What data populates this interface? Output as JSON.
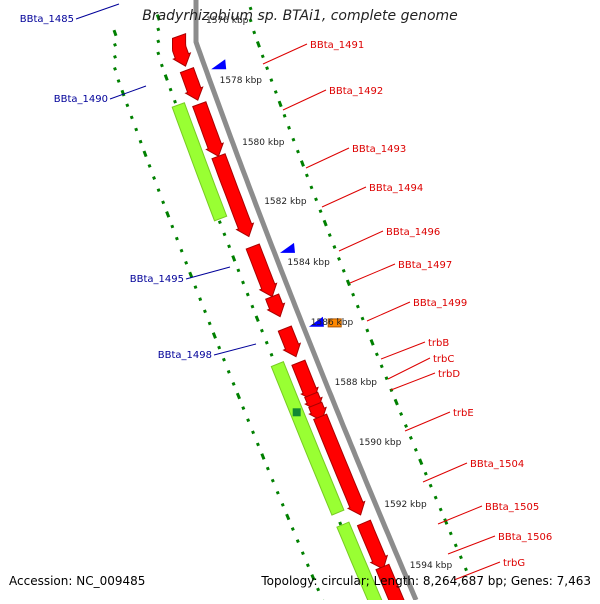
{
  "title": "Bradyrhizobium sp. BTAi1, complete genome",
  "footer": {
    "accession": "Accession: NC_009485",
    "summary": "Topology: circular; Length: 8,264,687 bp; Genes: 7,463"
  },
  "colors": {
    "backbone": "#8c8c8c",
    "forward_gene": "#ff0000",
    "reverse_gene": "#0000ff",
    "rna_gene": "#ff8800",
    "green_track": "#99ff33",
    "green_marker": "#118833",
    "tick_green": "#008000",
    "label_red": "#dd0000",
    "label_blue": "#000099"
  },
  "scale_labels": [
    "1576 kbp",
    "1578 kbp",
    "1580 kbp",
    "1582 kbp",
    "1584 kbp",
    "1586 kbp",
    "1588 kbp",
    "1590 kbp",
    "1592 kbp",
    "1594 kbp"
  ],
  "gene_labels_right": [
    "BBta_1491",
    "BBta_1492",
    "BBta_1493",
    "BBta_1494",
    "BBta_1496",
    "BBta_1497",
    "BBta_1499",
    "trbB",
    "trbC",
    "trbD",
    "trbE",
    "BBta_1504",
    "BBta_1505",
    "BBta_1506",
    "trbG"
  ],
  "gene_labels_left": [
    "BBta_1485",
    "BBta_1490",
    "BBta_1495",
    "BBta_1498"
  ]
}
